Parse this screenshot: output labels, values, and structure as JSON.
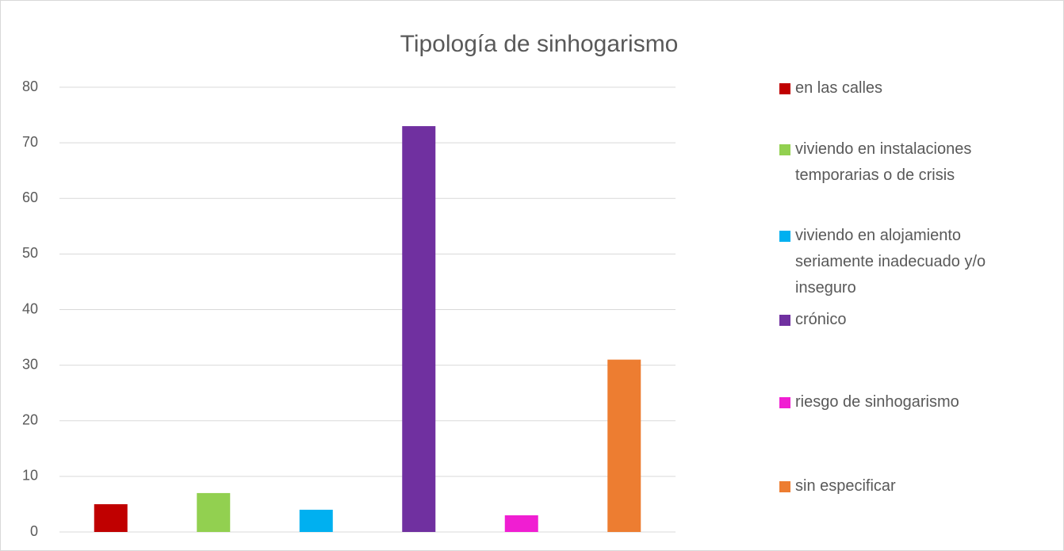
{
  "chart_data": {
    "type": "bar",
    "title": "Tipología de sinhogarismo",
    "series": [
      {
        "name": "en las calles",
        "color": "#c00000",
        "values": [
          5
        ]
      },
      {
        "name": "viviendo en instalaciones temporarias o de crisis",
        "color": "#92d050",
        "values": [
          7
        ]
      },
      {
        "name": "viviendo en alojamiento seriamente inadecuado y/o inseguro",
        "color": "#00b0f0",
        "values": [
          4
        ]
      },
      {
        "name": "crónico",
        "color": "#7030a0",
        "values": [
          73
        ]
      },
      {
        "name": "riesgo de sinhogarismo",
        "color": "#f01ed2",
        "values": [
          3
        ]
      },
      {
        "name": "sin especificar",
        "color": "#ed7d31",
        "values": [
          31
        ]
      }
    ],
    "ylim": [
      0,
      80
    ],
    "yticks": [
      0,
      10,
      20,
      30,
      40,
      50,
      60,
      70,
      80
    ],
    "grid": true,
    "legend": "right"
  }
}
